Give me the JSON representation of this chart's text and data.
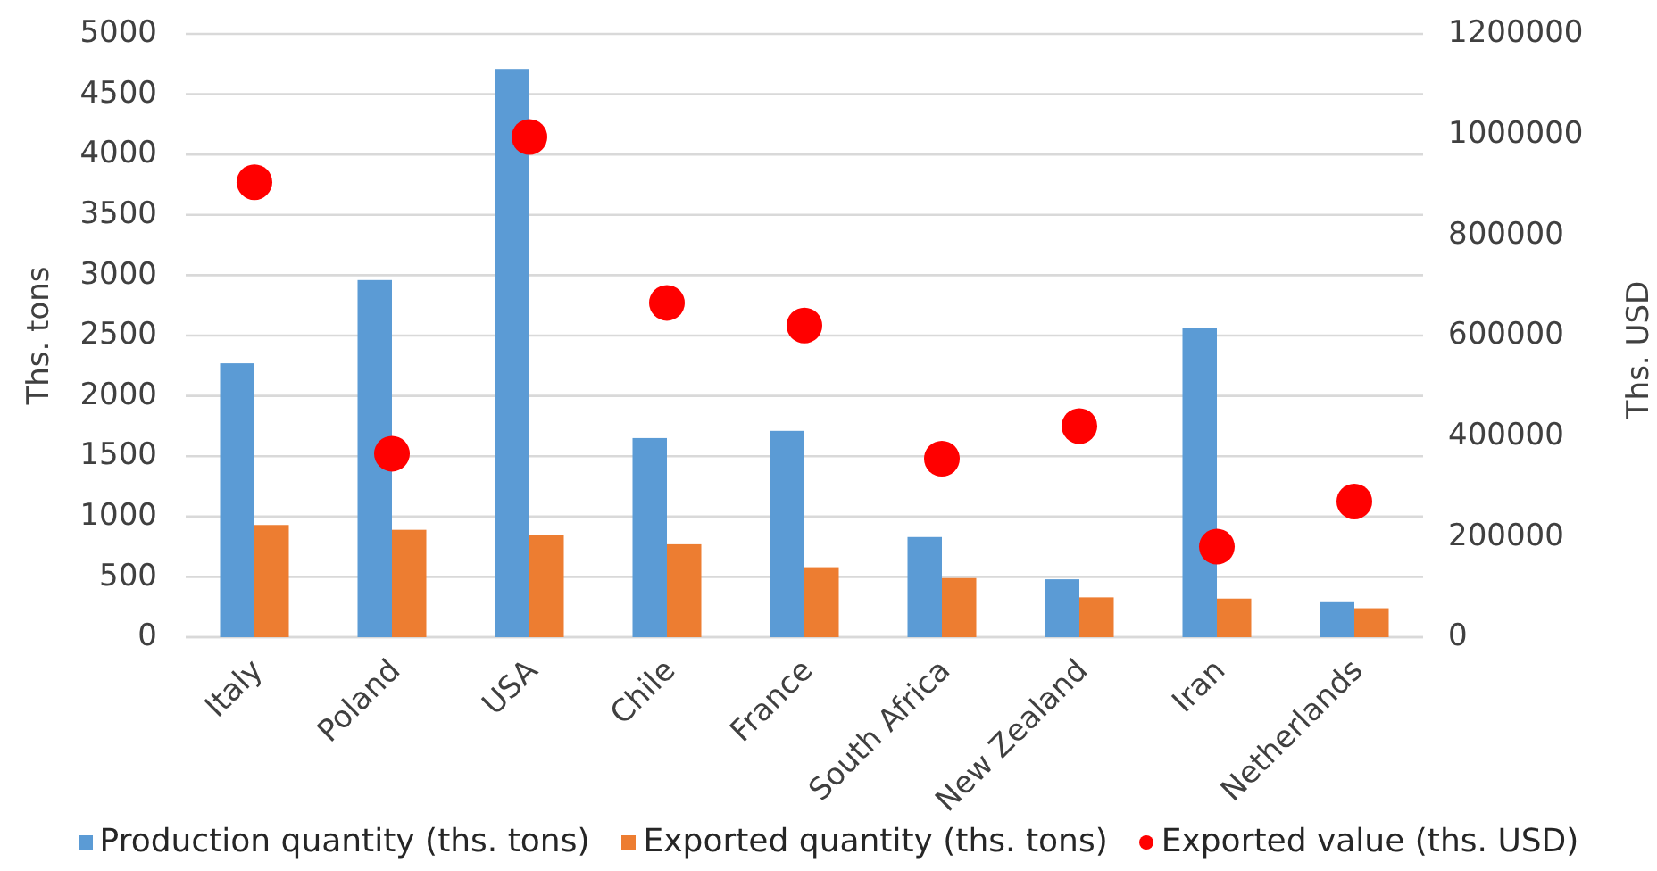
{
  "chart_data": {
    "type": "bar",
    "categories": [
      "Italy",
      "Poland",
      "USA",
      "Chile",
      "France",
      "South Africa",
      "New Zealand",
      "Iran",
      "Netherlands"
    ],
    "series": [
      {
        "name": "Production quantity (ths. tons)",
        "color": "#5b9bd5",
        "values": [
          2270,
          2960,
          4710,
          1650,
          1710,
          830,
          480,
          2560,
          290
        ]
      },
      {
        "name": "Exported quantity (ths. tons)",
        "color": "#ed7d31",
        "values": [
          930,
          890,
          850,
          770,
          580,
          490,
          330,
          320,
          240
        ]
      },
      {
        "name": "Exported value (ths. USD)",
        "type": "scatter",
        "axis": "y2",
        "marker": "circle",
        "color": "#ff0000",
        "x": [
          "Italy",
          "Poland",
          "USA",
          "Chile",
          "France",
          "South Africa",
          "New Zealand",
          "Iran",
          "Netherlands"
        ],
        "values": [
          905000,
          365000,
          995000,
          665000,
          620000,
          355000,
          420000,
          180000,
          270000
        ]
      }
    ],
    "ylabel": "Ths. tons",
    "y2label": "Ths. USD",
    "ylim": [
      0,
      5000
    ],
    "yticks": [
      0,
      500,
      1000,
      1500,
      2000,
      2500,
      3000,
      3500,
      4000,
      4500,
      5000
    ],
    "y2lim": [
      0,
      1200000
    ],
    "y2ticks": [
      0,
      200000,
      400000,
      600000,
      800000,
      1000000,
      1200000
    ],
    "grid": "y",
    "legend": "bottom"
  }
}
